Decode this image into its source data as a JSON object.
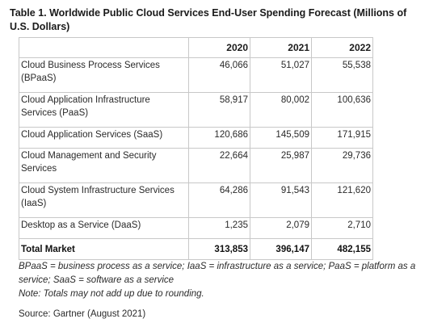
{
  "title": "Table 1. Worldwide Public Cloud Services End-User Spending Forecast (Millions of U.S. Dollars)",
  "columns": [
    "",
    "2020",
    "2021",
    "2022"
  ],
  "rows": [
    {
      "name": "Cloud Business Process Services (BPaaS)",
      "v2020": "46,066",
      "v2021": "51,027",
      "v2022": "55,538"
    },
    {
      "name": "Cloud Application Infrastructure Services (PaaS)",
      "v2020": "58,917",
      "v2021": "80,002",
      "v2022": "100,636"
    },
    {
      "name": "Cloud Application Services (SaaS)",
      "v2020": "120,686",
      "v2021": "145,509",
      "v2022": "171,915"
    },
    {
      "name": "Cloud Management and Security Services",
      "v2020": "22,664",
      "v2021": "25,987",
      "v2022": "29,736"
    },
    {
      "name": "Cloud System Infrastructure Services (IaaS)",
      "v2020": "64,286",
      "v2021": "91,543",
      "v2022": "121,620"
    },
    {
      "name": "Desktop as a Service (DaaS)",
      "v2020": "1,235",
      "v2021": "2,079",
      "v2022": "2,710"
    }
  ],
  "total": {
    "name": "Total Market",
    "v2020": "313,853",
    "v2021": "396,147",
    "v2022": "482,155"
  },
  "notes": {
    "abbreviations": "BPaaS = business process as a service; IaaS = infrastructure as a service; PaaS = platform as a service; SaaS = software as a service",
    "rounding": "Note: Totals may not add up due to rounding.",
    "source": "Source: Gartner (August 2021)"
  }
}
